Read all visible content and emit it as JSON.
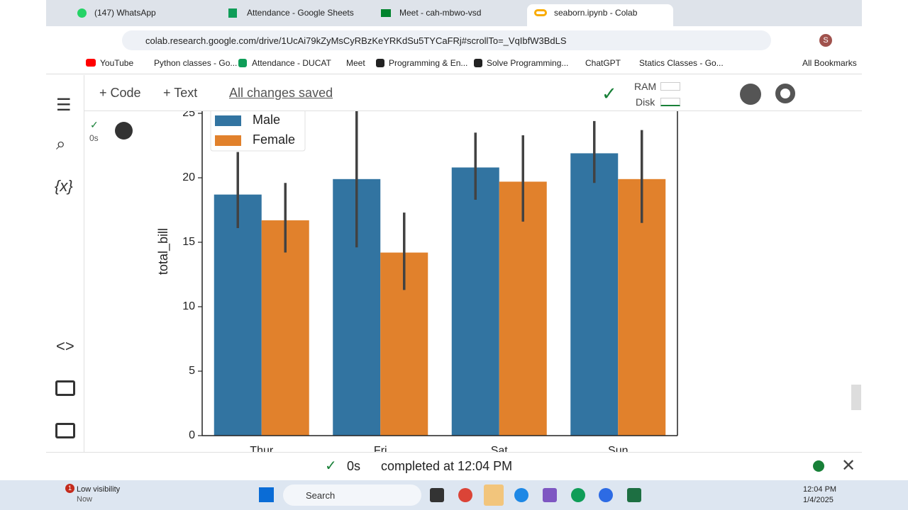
{
  "browser": {
    "tabs": [
      "(147) WhatsApp",
      "Attendance - Google Sheets",
      "Meet - cah-mbwo-vsd",
      "seaborn.ipynb - Colab"
    ],
    "url": "colab.research.google.com/drive/1UcAi79kZyMsCyRBzKeYRKdSu5TYCaFRj#scrollTo=_VqIbfW3BdLS",
    "profile": "S",
    "bookmarks": [
      "YouTube",
      "Python classes - Go...",
      "Attendance - DUCAT",
      "Meet",
      "Programming & En...",
      "Solve Programming...",
      "ChatGPT",
      "Statics Classes - Go..."
    ],
    "all_bookmarks": "All Bookmarks"
  },
  "colab": {
    "add_code": "Code",
    "add_text": "Text",
    "save_status": "All changes saved",
    "ram": "RAM",
    "disk": "Disk",
    "cell_time": "0s",
    "footer_time": "0s",
    "footer_status": "completed at 12:04 PM"
  },
  "taskbar": {
    "notifications": 1,
    "weather": "Low visibility",
    "weather_time": "Now",
    "search": "Search",
    "time": "12:04 PM",
    "date": "1/4/2025"
  },
  "chart_data": {
    "type": "bar",
    "y_label": "total_bill",
    "categories": [
      "Thur",
      "Fri",
      "Sat",
      "Sun"
    ],
    "series": [
      {
        "name": "Male",
        "color": "#3274a1",
        "values": [
          18.7,
          19.9,
          20.8,
          21.9
        ],
        "ci": [
          [
            16.1,
            22.0
          ],
          [
            14.6,
            25.4
          ],
          [
            18.3,
            23.5
          ],
          [
            19.6,
            24.4
          ]
        ]
      },
      {
        "name": "Female",
        "color": "#e1812c",
        "values": [
          16.7,
          14.2,
          19.7,
          19.9
        ],
        "ci": [
          [
            14.2,
            19.6
          ],
          [
            11.3,
            17.3
          ],
          [
            16.6,
            23.3
          ],
          [
            16.5,
            23.7
          ]
        ]
      }
    ],
    "ylim": [
      0,
      25
    ],
    "yticks": [
      0,
      5,
      10,
      15,
      20,
      25
    ],
    "legend": "upper left"
  }
}
